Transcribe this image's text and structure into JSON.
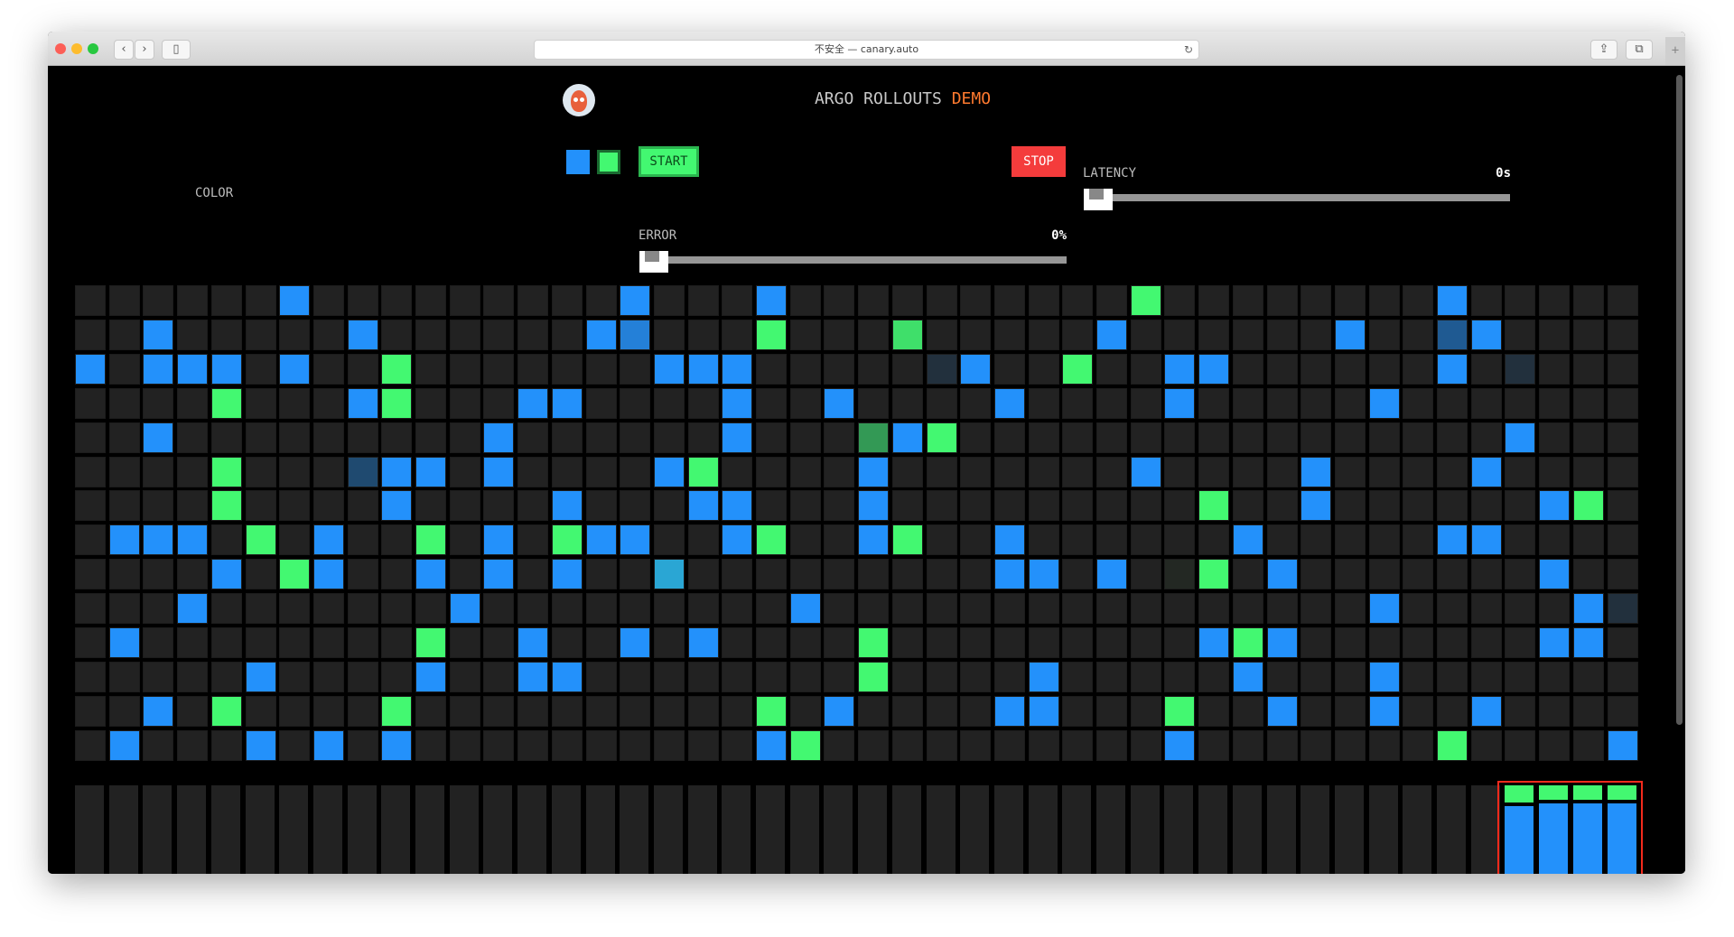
{
  "browser": {
    "url_text": "不安全 — canary.auto",
    "back_icon": "chevron-left-icon",
    "forward_icon": "chevron-right-icon",
    "back_glyph": "‹",
    "forward_glyph": "›",
    "sidebar_glyph": "▯",
    "reload_glyph": "↻",
    "share_glyph": "⇪",
    "tabs_glyph": "⧉",
    "plus_glyph": "+"
  },
  "header": {
    "title_main": "ARGO ROLLOUTS",
    "title_accent": "DEMO"
  },
  "controls": {
    "color_label": "COLOR",
    "colors": [
      "#2391fb",
      "#43f871"
    ],
    "start_label": "START",
    "stop_label": "STOP",
    "latency_label": "LATENCY",
    "latency_value": "0s",
    "latency_fraction": 0,
    "error_label": "ERROR",
    "error_value": "0%",
    "error_fraction": 0
  },
  "palette": {
    "empty": "#222222",
    "b": "#2391fb",
    "g": "#43f871",
    "m": "#2480d8",
    "d": "#1f5a92",
    "e": "#1f4a70",
    "n": "#22303d",
    "D": "#339955",
    "G": "#3fdf6a",
    "t": "#2aa6d4",
    "f": "#232823",
    "bar_empty": "#222222",
    "highlight": "#f32a1c"
  },
  "grid": {
    "columns": 46,
    "rows": [
      {
        "6": "b",
        "16": "b",
        "20": "b",
        "31": "g",
        "40": "b"
      },
      {
        "2": "b",
        "8": "b",
        "15": "b",
        "16": "m",
        "20": "g",
        "24": "G",
        "30": "b",
        "37": "b",
        "40": "d",
        "41": "b"
      },
      {
        "0": "b",
        "2": "b",
        "3": "b",
        "4": "b",
        "6": "b",
        "9": "g",
        "17": "b",
        "18": "b",
        "19": "b",
        "25": "n",
        "26": "b",
        "29": "g",
        "32": "b",
        "33": "b",
        "40": "b",
        "42": "n"
      },
      {
        "4": "g",
        "8": "b",
        "9": "g",
        "13": "b",
        "14": "b",
        "19": "b",
        "22": "b",
        "27": "b",
        "32": "b",
        "38": "b"
      },
      {
        "2": "b",
        "12": "b",
        "19": "b",
        "23": "D",
        "24": "b",
        "25": "g",
        "42": "b"
      },
      {
        "4": "g",
        "8": "e",
        "9": "b",
        "10": "b",
        "12": "b",
        "17": "b",
        "18": "g",
        "23": "b",
        "31": "b",
        "36": "b",
        "41": "b"
      },
      {
        "4": "g",
        "9": "b",
        "14": "b",
        "18": "b",
        "19": "b",
        "23": "b",
        "33": "g",
        "36": "b",
        "43": "b",
        "44": "g"
      },
      {
        "1": "b",
        "2": "b",
        "3": "b",
        "5": "g",
        "7": "b",
        "10": "g",
        "12": "b",
        "14": "g",
        "15": "b",
        "16": "b",
        "19": "b",
        "20": "g",
        "23": "b",
        "24": "g",
        "27": "b",
        "34": "b",
        "40": "b",
        "41": "b"
      },
      {
        "4": "b",
        "6": "g",
        "7": "b",
        "10": "b",
        "12": "b",
        "14": "b",
        "17": "t",
        "27": "b",
        "28": "b",
        "30": "b",
        "32": "f",
        "33": "g",
        "35": "b",
        "43": "b"
      },
      {
        "3": "b",
        "11": "b",
        "21": "b",
        "38": "b",
        "44": "b",
        "45": "n"
      },
      {
        "1": "b",
        "10": "g",
        "13": "b",
        "16": "b",
        "18": "b",
        "23": "g",
        "33": "b",
        "34": "g",
        "35": "b",
        "43": "b",
        "44": "b"
      },
      {
        "5": "b",
        "10": "b",
        "13": "b",
        "14": "b",
        "23": "g",
        "28": "b",
        "34": "b",
        "38": "b"
      },
      {
        "2": "b",
        "4": "g",
        "9": "g",
        "20": "g",
        "22": "b",
        "27": "b",
        "28": "b",
        "32": "g",
        "35": "b",
        "38": "b",
        "41": "b"
      },
      {
        "1": "b",
        "5": "b",
        "7": "b",
        "9": "b",
        "20": "b",
        "21": "g",
        "32": "b",
        "40": "g",
        "45": "b"
      }
    ]
  },
  "history_bars": {
    "columns": 46,
    "filled": [
      {
        "col": 42,
        "green": 0.21,
        "blue": 0.79
      },
      {
        "col": 43,
        "green": 0.18,
        "blue": 0.82
      },
      {
        "col": 44,
        "green": 0.18,
        "blue": 0.82
      },
      {
        "col": 45,
        "green": 0.18,
        "blue": 0.82
      }
    ],
    "highlighted_columns": [
      42,
      45
    ]
  }
}
